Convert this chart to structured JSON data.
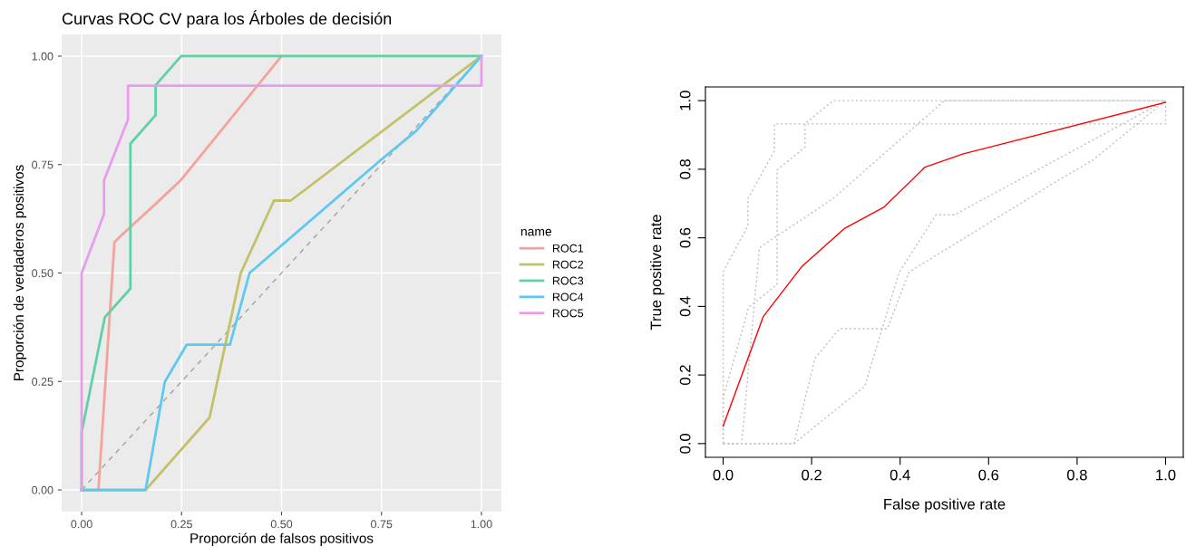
{
  "chart_data": [
    {
      "type": "line",
      "title": "Curvas ROC CV para los Árboles de decisión",
      "xlabel": "Proporción de falsos positivos",
      "ylabel": "Proporción de verdaderos positivos",
      "legend_title": "name",
      "legend": "right",
      "grid": true,
      "xlim": [
        -0.05,
        1.05
      ],
      "ylim": [
        -0.05,
        1.05
      ],
      "xticks": [
        {
          "value": 0,
          "label": "0.00"
        },
        {
          "value": 0.25,
          "label": "0.25"
        },
        {
          "value": 0.5,
          "label": "0.50"
        },
        {
          "value": 0.75,
          "label": "0.75"
        },
        {
          "value": 1,
          "label": "1.00"
        }
      ],
      "yticks": [
        {
          "value": 0,
          "label": "0.00"
        },
        {
          "value": 0.25,
          "label": "0.25"
        },
        {
          "value": 0.5,
          "label": "0.50"
        },
        {
          "value": 0.75,
          "label": "0.75"
        },
        {
          "value": 1,
          "label": "1.00"
        }
      ],
      "series": [
        {
          "color": "#a0a0a0",
          "line_style": "dashed",
          "x": [
            0,
            1
          ],
          "values": [
            0,
            1
          ]
        },
        {
          "name": "ROC1",
          "color": "#f4a39b",
          "x": [
            0,
            0.042,
            0.082,
            0.102,
            0.187,
            0.249,
            0.5
          ],
          "values": [
            0,
            0,
            0.571,
            0.589,
            0.661,
            0.715,
            1
          ]
        },
        {
          "name": "ROC2",
          "color": "#c2c068",
          "x": [
            0,
            0.16,
            0.32,
            0.398,
            0.481,
            0.523,
            1
          ],
          "values": [
            0,
            0,
            0.167,
            0.5,
            0.667,
            0.667,
            1
          ]
        },
        {
          "name": "ROC3",
          "color": "#5fd1a4",
          "x": [
            0,
            0,
            0.058,
            0.122,
            0.122,
            0.185,
            0.185,
            0.249,
            1
          ],
          "values": [
            0,
            0.133,
            0.398,
            0.464,
            0.798,
            0.864,
            0.933,
            1,
            1
          ]
        },
        {
          "name": "ROC4",
          "color": "#5ec8f0",
          "x": [
            0,
            0.16,
            0.208,
            0.263,
            0.371,
            0.42,
            0.75,
            0.836,
            1
          ],
          "values": [
            0,
            0,
            0.249,
            0.335,
            0.335,
            0.5,
            0.762,
            0.827,
            1
          ]
        },
        {
          "name": "ROC5",
          "color": "#e89cee",
          "x": [
            0,
            0,
            0.056,
            0.056,
            0.116,
            0.116,
            1,
            1
          ],
          "values": [
            0,
            0.5,
            0.636,
            0.714,
            0.854,
            0.932,
            0.932,
            1
          ]
        }
      ]
    },
    {
      "type": "line",
      "xlabel": "False positive rate",
      "ylabel": "True positive rate",
      "grid": false,
      "xlim": [
        -0.04,
        1.04
      ],
      "ylim": [
        -0.04,
        1.04
      ],
      "xticks": [
        {
          "value": 0,
          "label": "0.0"
        },
        {
          "value": 0.2,
          "label": "0.2"
        },
        {
          "value": 0.4,
          "label": "0.4"
        },
        {
          "value": 0.6,
          "label": "0.6"
        },
        {
          "value": 0.8,
          "label": "0.8"
        },
        {
          "value": 1,
          "label": "1.0"
        }
      ],
      "yticks": [
        {
          "value": 0,
          "label": "0.0"
        },
        {
          "value": 0.2,
          "label": "0.2"
        },
        {
          "value": 0.4,
          "label": "0.4"
        },
        {
          "value": 0.6,
          "label": "0.6"
        },
        {
          "value": 0.8,
          "label": "0.8"
        },
        {
          "value": 1,
          "label": "1.0"
        }
      ],
      "series": [
        {
          "color": "#c0c0c0",
          "line_style": "dotted",
          "x": [
            0,
            0.042,
            0.082,
            0.102,
            0.187,
            0.249,
            0.5,
            1
          ],
          "values": [
            0,
            0,
            0.571,
            0.589,
            0.661,
            0.715,
            1,
            1
          ]
        },
        {
          "color": "#c0c0c0",
          "line_style": "dotted",
          "x": [
            0,
            0.16,
            0.32,
            0.398,
            0.481,
            0.523,
            1
          ],
          "values": [
            0,
            0,
            0.167,
            0.5,
            0.667,
            0.667,
            1
          ]
        },
        {
          "color": "#c0c0c0",
          "line_style": "dotted",
          "x": [
            0,
            0,
            0.058,
            0.122,
            0.122,
            0.185,
            0.185,
            0.249,
            1
          ],
          "values": [
            0,
            0.133,
            0.398,
            0.464,
            0.798,
            0.864,
            0.933,
            1,
            1
          ]
        },
        {
          "color": "#c0c0c0",
          "line_style": "dotted",
          "x": [
            0,
            0.16,
            0.208,
            0.263,
            0.371,
            0.42,
            0.75,
            0.836,
            1
          ],
          "values": [
            0,
            0,
            0.249,
            0.335,
            0.335,
            0.5,
            0.762,
            0.827,
            1
          ]
        },
        {
          "color": "#c0c0c0",
          "line_style": "dotted",
          "x": [
            0,
            0,
            0.056,
            0.056,
            0.116,
            0.116,
            1,
            1
          ],
          "values": [
            0,
            0.5,
            0.636,
            0.714,
            0.854,
            0.932,
            0.932,
            1
          ]
        },
        {
          "color": "#ff0000",
          "x": [
            0,
            0.091,
            0.177,
            0.274,
            0.363,
            0.456,
            0.543,
            1
          ],
          "values": [
            0.051,
            0.371,
            0.515,
            0.627,
            0.689,
            0.806,
            0.845,
            0.995
          ]
        }
      ]
    }
  ]
}
